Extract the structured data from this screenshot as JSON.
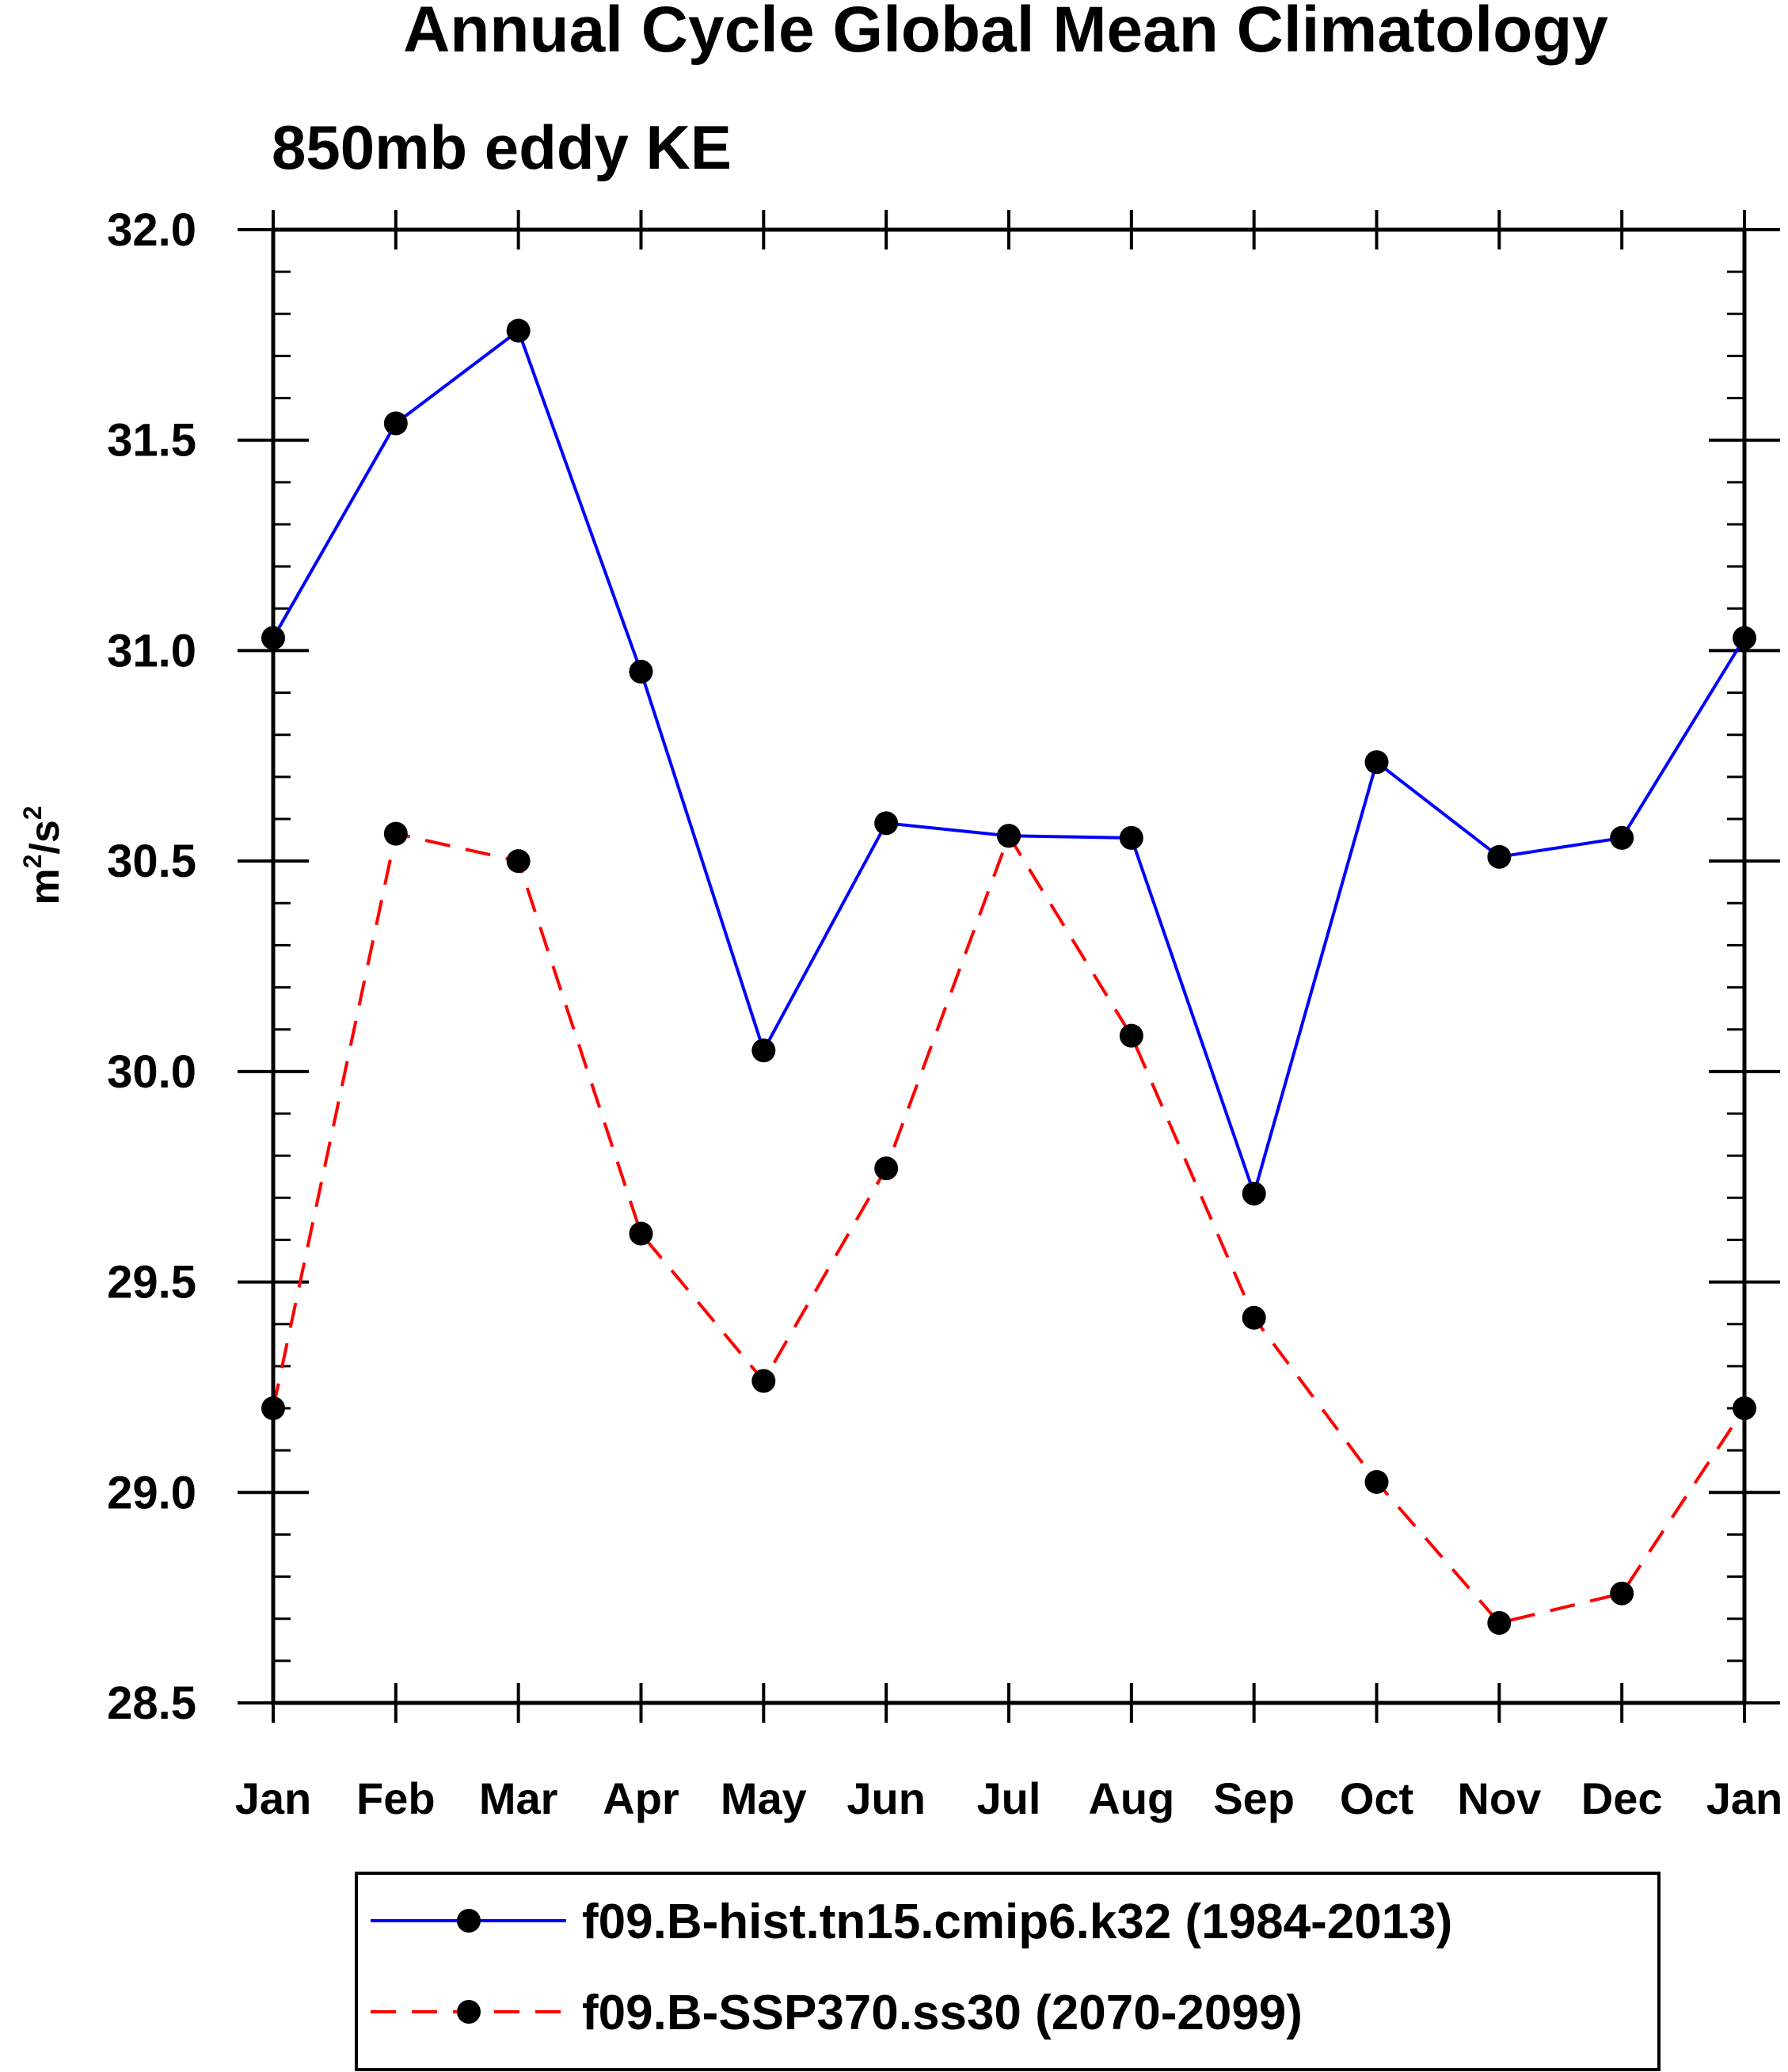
{
  "chart_data": {
    "type": "line",
    "title": "Annual Cycle Global Mean Climatology",
    "subtitle": "850mb eddy KE",
    "ylabel_base": "m",
    "ylabel_sup1": "2",
    "ylabel_mid": "/s",
    "ylabel_sup2": "2",
    "xlabel": "",
    "categories": [
      "Jan",
      "Feb",
      "Mar",
      "Apr",
      "May",
      "Jun",
      "Jul",
      "Aug",
      "Sep",
      "Oct",
      "Nov",
      "Dec",
      "Jan"
    ],
    "ylim": [
      28.5,
      32.0
    ],
    "yticks": [
      "28.5",
      "29.0",
      "29.5",
      "30.0",
      "30.5",
      "31.0",
      "31.5",
      "32.0"
    ],
    "grid": false,
    "legend_position": "bottom",
    "series": [
      {
        "name": "f09.B-hist.tn15.cmip6.k32 (1984-2013)",
        "color": "#0000ff",
        "dash": "solid",
        "values": [
          31.03,
          31.54,
          31.76,
          30.95,
          30.05,
          30.59,
          30.56,
          30.555,
          29.71,
          30.735,
          30.51,
          30.555,
          31.03
        ]
      },
      {
        "name": "f09.B-SSP370.ss30 (2070-2099)",
        "color": "#ff0000",
        "dash": "dashed",
        "values": [
          29.2,
          30.565,
          30.5,
          29.615,
          29.265,
          29.77,
          30.56,
          30.085,
          29.415,
          29.025,
          28.69,
          28.76,
          29.2
        ]
      }
    ]
  }
}
